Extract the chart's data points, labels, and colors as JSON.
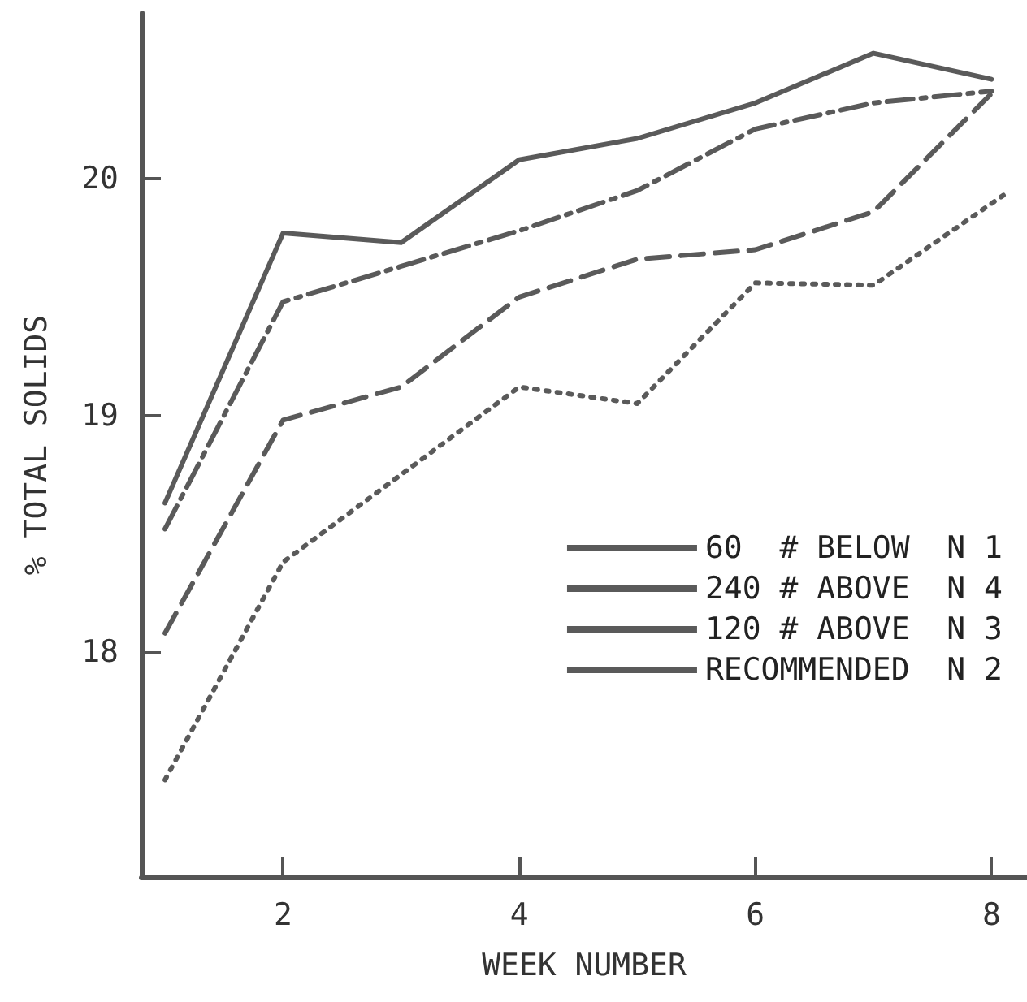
{
  "chart_data": {
    "type": "line",
    "xlabel": "WEEK NUMBER",
    "ylabel": "% TOTAL SOLIDS",
    "x": [
      1,
      2,
      3,
      4,
      5,
      6,
      7,
      8
    ],
    "series": [
      {
        "name": "60  # BELOW  N 1",
        "color": "#5a5a5a",
        "line_style": "solid",
        "values": [
          18.63,
          19.77,
          19.73,
          20.08,
          20.17,
          20.32,
          20.53,
          20.42
        ]
      },
      {
        "name": "240 # ABOVE  N 4",
        "color": "#5a5a5a",
        "line_style": "dotted",
        "x": [
          1,
          2,
          3,
          4,
          5,
          6,
          7,
          8.1
        ],
        "values": [
          17.46,
          18.38,
          18.75,
          19.12,
          19.05,
          19.56,
          19.55,
          19.93
        ]
      },
      {
        "name": "120 # ABOVE  N 3",
        "color": "#5a5a5a",
        "line_style": "dashed",
        "values": [
          18.08,
          18.98,
          19.12,
          19.5,
          19.66,
          19.7,
          19.86,
          20.36
        ]
      },
      {
        "name": "RECOMMENDED  N 2",
        "color": "#5a5a5a",
        "line_style": "dashdot",
        "values": [
          18.52,
          19.48,
          19.63,
          19.78,
          19.95,
          20.21,
          20.32,
          20.37
        ]
      }
    ],
    "xlim": [
      0.8,
      8.3
    ],
    "xticks": [
      2,
      4,
      6,
      8
    ],
    "ylim": [
      17.05,
      20.7
    ],
    "yticks": [
      18,
      19,
      20
    ],
    "grid": false,
    "legend": "bottom right",
    "marker": "none"
  }
}
